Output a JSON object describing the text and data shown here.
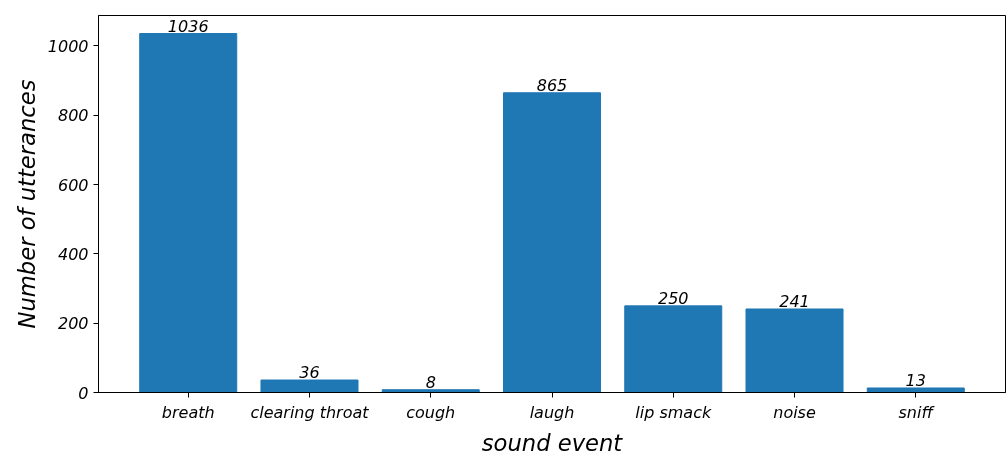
{
  "chart_data": {
    "type": "bar",
    "xlabel": "sound event",
    "ylabel": "Number of utterances",
    "categories": [
      "breath",
      "clearing throat",
      "cough",
      "laugh",
      "lip smack",
      "noise",
      "sniff"
    ],
    "values": [
      1036,
      36,
      8,
      865,
      250,
      241,
      13
    ],
    "color": "#1f77b4",
    "ylim": [
      0,
      1088
    ],
    "yticks": [
      0,
      200,
      400,
      600,
      800,
      1000
    ],
    "grid": false,
    "data_labels": true
  }
}
